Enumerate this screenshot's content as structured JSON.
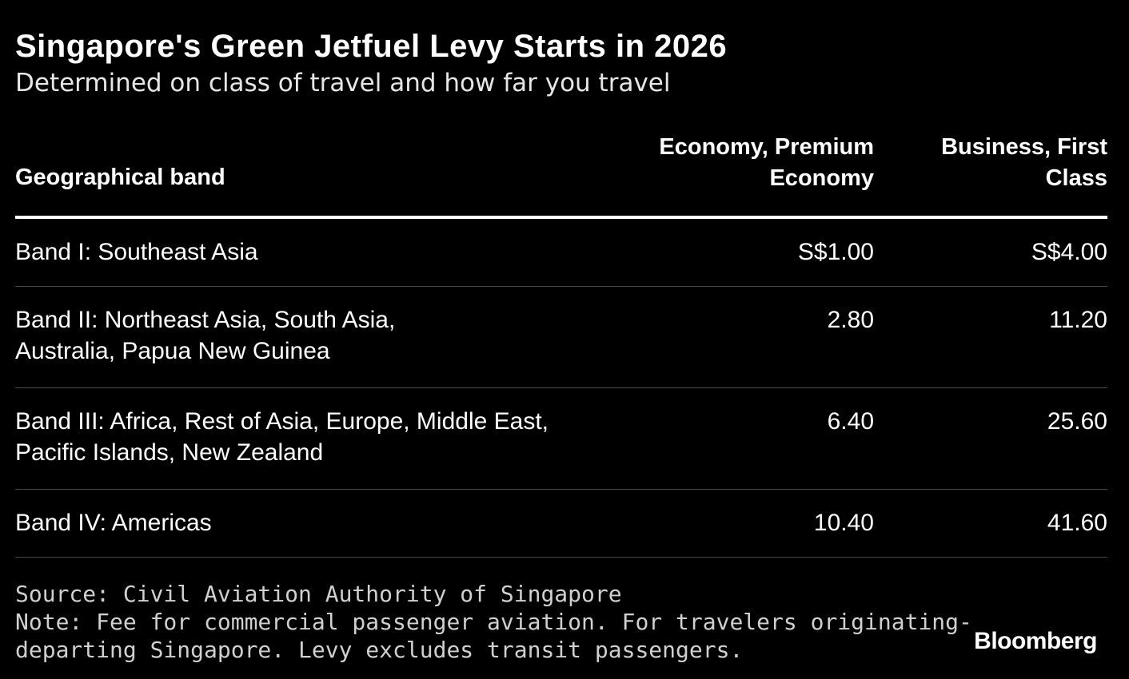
{
  "title": "Singapore's Green Jetfuel Levy Starts in 2026",
  "subtitle": "Determined on class of travel and how far you travel",
  "table": {
    "headers": {
      "band": "Geographical band",
      "economy_line1": "Economy, Premium",
      "economy_line2": "Economy",
      "business_line1": "Business, First",
      "business_line2": "Class"
    },
    "rows": [
      {
        "band": "Band I: Southeast Asia",
        "economy": "S$1.00",
        "business": "S$4.00"
      },
      {
        "band": "Band II: Northeast Asia, South Asia, Australia, Papua New Guinea",
        "economy": "2.80",
        "business": "11.20"
      },
      {
        "band": "Band III: Africa, Rest of Asia, Europe, Middle East, Pacific Islands, New Zealand",
        "economy": "6.40",
        "business": "25.60"
      },
      {
        "band": "Band IV: Americas",
        "economy": "10.40",
        "business": "41.60"
      }
    ]
  },
  "footer": {
    "source": "Source: Civil Aviation Authority of Singapore",
    "note_line1": "Note: Fee for commercial passenger aviation. For travelers originating-",
    "note_line2": "departing Singapore. Levy excludes transit passengers.",
    "logo": "Bloomberg"
  }
}
